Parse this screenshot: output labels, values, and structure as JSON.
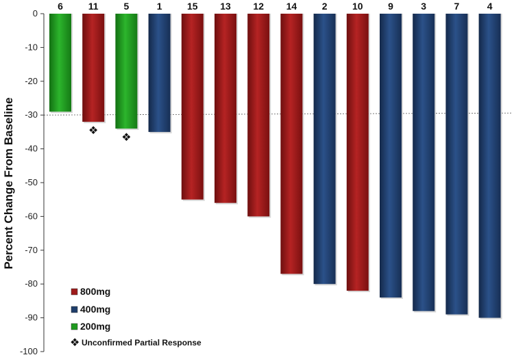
{
  "chart_data": {
    "type": "bar",
    "ylabel": "Percent Change From Baseline",
    "ylim": [
      -100,
      0
    ],
    "yticks": [
      0,
      -10,
      -20,
      -30,
      -40,
      -50,
      -60,
      -70,
      -80,
      -90,
      -100
    ],
    "reference_line": -30,
    "categories": [
      "6",
      "11",
      "5",
      "1",
      "15",
      "13",
      "12",
      "14",
      "2",
      "10",
      "9",
      "3",
      "7",
      "4"
    ],
    "values": [
      -29,
      -32,
      -34,
      -35,
      -55,
      -56,
      -60,
      -77,
      -80,
      -82,
      -84,
      -88,
      -89,
      -90
    ],
    "groups": [
      "200mg",
      "800mg",
      "200mg",
      "400mg",
      "800mg",
      "800mg",
      "800mg",
      "800mg",
      "400mg",
      "800mg",
      "400mg",
      "400mg",
      "400mg",
      "400mg"
    ],
    "unconfirmed": [
      false,
      true,
      true,
      false,
      false,
      false,
      false,
      false,
      false,
      false,
      false,
      false,
      false,
      false
    ],
    "legend": [
      {
        "name": "800mg",
        "color": "#9e1a1a"
      },
      {
        "name": "400mg",
        "color": "#1f3e6b"
      },
      {
        "name": "200mg",
        "color": "#1f9a1f"
      }
    ],
    "marker_symbol": "❖",
    "marker_label": "Unconfirmed Partial Response"
  }
}
